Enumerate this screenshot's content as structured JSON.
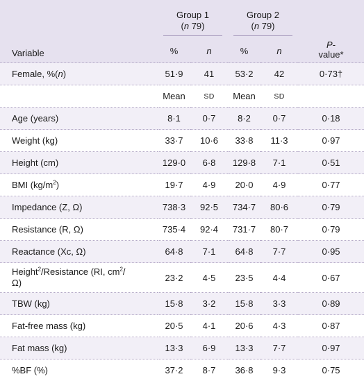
{
  "header": {
    "variable_label": "Variable",
    "group1_title": "Group 1",
    "group1_n_prefix": "(",
    "group1_n_italic": "n",
    "group1_n_value": " 79)",
    "group2_title": "Group 2",
    "group2_n_prefix": "(",
    "group2_n_italic": "n",
    "group2_n_value": " 79)",
    "pct_label": "%",
    "n_label": "n",
    "p_italic": "P",
    "p_suffix": "-",
    "p_line2": "value*"
  },
  "rows": [
    {
      "label": "Female, %(",
      "label_italic": "n",
      "label_end": ")",
      "g1a": "51·9",
      "g1b": "41",
      "g2a": "53·2",
      "g2b": "42",
      "p": "0·73†"
    },
    {
      "label": "",
      "g1a": "Mean",
      "g1b": "SD",
      "g2a": "Mean",
      "g2b": "SD",
      "p": ""
    },
    {
      "label": "Age (years)",
      "g1a": "8·1",
      "g1b": "0·7",
      "g2a": "8·2",
      "g2b": "0·7",
      "p": "0·18"
    },
    {
      "label": "Weight (kg)",
      "g1a": "33·7",
      "g1b": "10·6",
      "g2a": "33·8",
      "g2b": "11·3",
      "p": "0·97"
    },
    {
      "label": "Height (cm)",
      "g1a": "129·0",
      "g1b": "6·8",
      "g2a": "129·8",
      "g2b": "7·1",
      "p": "0·51"
    },
    {
      "label": "BMI (kg/m",
      "sup": "2",
      "label_end": ")",
      "g1a": "19·7",
      "g1b": "4·9",
      "g2a": "20·0",
      "g2b": "4·9",
      "p": "0·77"
    },
    {
      "label": "Impedance (Z, Ω)",
      "g1a": "738·3",
      "g1b": "92·5",
      "g2a": "734·7",
      "g2b": "80·6",
      "p": "0·79"
    },
    {
      "label": "Resistance (R, Ω)",
      "g1a": "735·4",
      "g1b": "92·4",
      "g2a": "731·7",
      "g2b": "80·7",
      "p": "0·79"
    },
    {
      "label": "Reactance (Xc, Ω)",
      "g1a": "64·8",
      "g1b": "7·1",
      "g2a": "64·8",
      "g2b": "7·7",
      "p": "0·95"
    },
    {
      "label": "Height",
      "sup": "2",
      "label_end": "/Resistance (RI, cm",
      "sup2": "2",
      "label_end2": "/",
      "label_line2": "Ω)",
      "g1a": "23·2",
      "g1b": "4·5",
      "g2a": "23·5",
      "g2b": "4·4",
      "p": "0·67"
    },
    {
      "label": "TBW (kg)",
      "g1a": "15·8",
      "g1b": "3·2",
      "g2a": "15·8",
      "g2b": "3·3",
      "p": "0·89"
    },
    {
      "label": "Fat-free mass (kg)",
      "g1a": "20·5",
      "g1b": "4·1",
      "g2a": "20·6",
      "g2b": "4·3",
      "p": "0·87"
    },
    {
      "label": "Fat mass (kg)",
      "g1a": "13·3",
      "g1b": "6·9",
      "g2a": "13·3",
      "g2b": "7·7",
      "p": "0·97"
    },
    {
      "label": "%BF (%)",
      "g1a": "37·2",
      "g1b": "8·7",
      "g2a": "36·8",
      "g2b": "9·3",
      "p": "0·75"
    }
  ]
}
